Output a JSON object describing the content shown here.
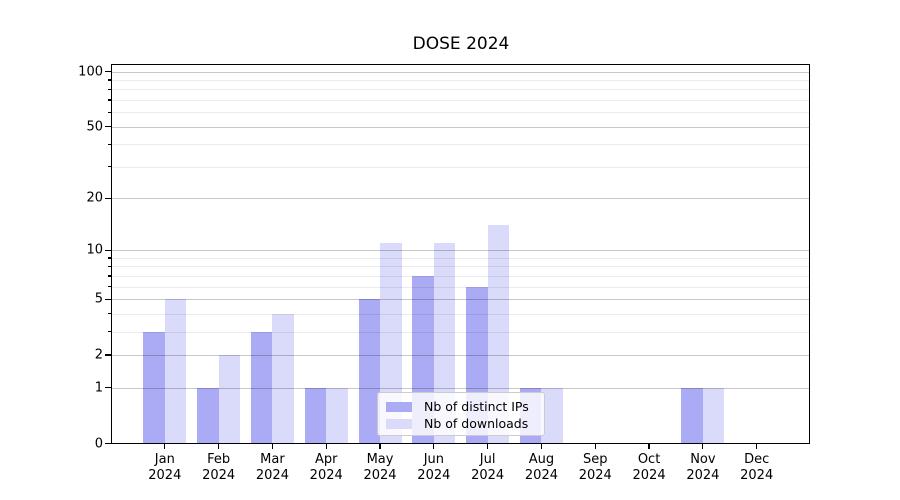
{
  "title": "DOSE 2024",
  "colors": {
    "distinct_ips": "#aaaaf5",
    "downloads": "#dadbfa",
    "axis": "#000000",
    "grid_major": "rgba(0,0,0,0.22)",
    "grid_minor": "rgba(0,0,0,0.08)",
    "legend_border": "#cccccc",
    "legend_bg": "rgba(255,255,255,0.8)"
  },
  "legend": {
    "items": [
      {
        "label": "Nb of distinct IPs",
        "color_key": "distinct_ips"
      },
      {
        "label": "Nb of downloads",
        "color_key": "downloads"
      }
    ]
  },
  "chart_data": {
    "type": "bar",
    "title": "DOSE 2024",
    "categories": [
      "Jan",
      "Feb",
      "Mar",
      "Apr",
      "May",
      "Jun",
      "Jul",
      "Aug",
      "Sep",
      "Oct",
      "Nov",
      "Dec"
    ],
    "category_year": "2024",
    "series": [
      {
        "name": "Nb of distinct IPs",
        "color_key": "distinct_ips",
        "values": [
          3,
          1,
          3,
          1,
          5,
          7,
          6,
          1,
          0,
          0,
          1,
          0
        ]
      },
      {
        "name": "Nb of downloads",
        "color_key": "downloads",
        "values": [
          5,
          2,
          4,
          1,
          11,
          11,
          14,
          1,
          0,
          0,
          1,
          0
        ]
      }
    ],
    "xlabel": "",
    "ylabel": "",
    "yscale": "log10(1+v)",
    "ylim": [
      0,
      110
    ],
    "yticks": [
      0,
      1,
      2,
      5,
      10,
      20,
      50,
      100
    ],
    "yticks_minor": [
      3,
      4,
      6,
      7,
      8,
      9,
      30,
      40,
      60,
      70,
      80,
      90
    ],
    "grid": true,
    "legend_position": "lower center"
  }
}
